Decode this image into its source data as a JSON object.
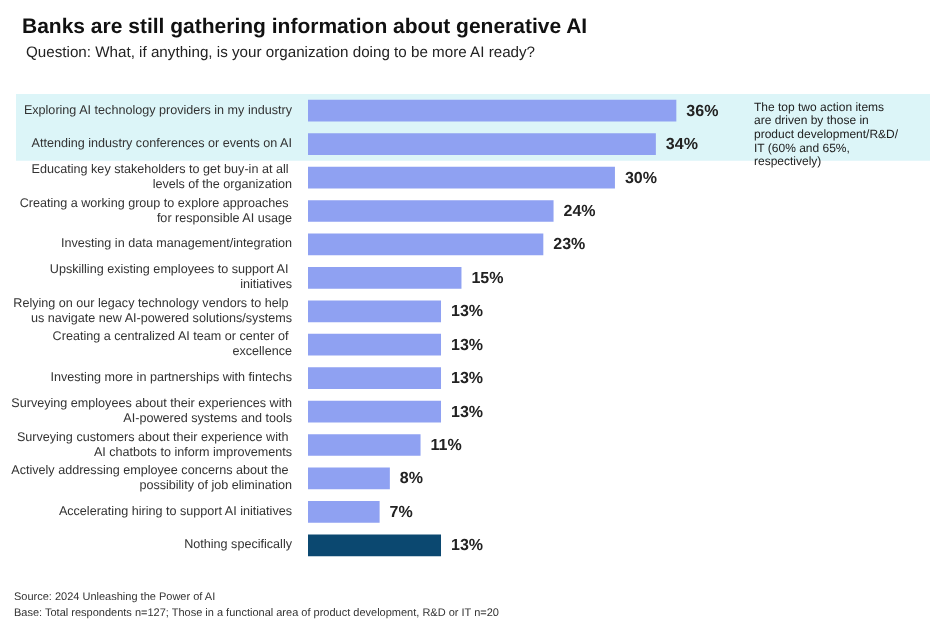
{
  "chart_data": {
    "type": "bar",
    "orientation": "horizontal",
    "title": "Banks are still gathering information about generative AI",
    "subtitle": "Question: What, if anything, is your organization doing to be more AI ready?",
    "categories": [
      "Exploring AI technology providers in my industry",
      "Attending industry conferences or events on AI",
      "Educating key stakeholders to get buy-in at all levels of the organization",
      "Creating a working group to explore approaches for responsible AI usage",
      "Investing in data management/integration",
      "Upskilling existing employees to support AI initiatives",
      "Relying on our legacy technology vendors to help us navigate new AI-powered solutions/systems",
      "Creating a centralized AI team or center of excellence",
      "Investing more in partnerships with fintechs",
      "Surveying employees about their experiences with AI-powered systems and tools",
      "Surveying customers about their experience with AI chatbots to inform improvements",
      "Actively addressing employee concerns about the possibility of job elimination",
      "Accelerating hiring to support AI initiatives",
      "Nothing specifically"
    ],
    "values": [
      36,
      34,
      30,
      24,
      23,
      15,
      13,
      13,
      13,
      13,
      11,
      8,
      7,
      13
    ],
    "value_labels": [
      "36%",
      "34%",
      "30%",
      "24%",
      "23%",
      "15%",
      "13%",
      "13%",
      "13%",
      "13%",
      "11%",
      "8%",
      "7%",
      "13%"
    ],
    "colors": [
      "#8fa1f2",
      "#8fa1f2",
      "#8fa1f2",
      "#8fa1f2",
      "#8fa1f2",
      "#8fa1f2",
      "#8fa1f2",
      "#8fa1f2",
      "#8fa1f2",
      "#8fa1f2",
      "#8fa1f2",
      "#8fa1f2",
      "#8fa1f2",
      "#0b4870"
    ],
    "tick_labels": false,
    "bands": [
      {
        "axis": "y",
        "from": "Exploring AI technology providers in my industry",
        "to": "Attending industry conferences or events on AI",
        "color": "#dcf5f8",
        "label": "The top two action items are driven by those in product development/R&D/IT (60% and 65%, respectively)"
      }
    ],
    "annotations": [
      "Source: 2024 Unleashing the Power of AI",
      "Base: Total respondents n=127; Those in a functional area of product development, R&D or IT n=20"
    ]
  }
}
